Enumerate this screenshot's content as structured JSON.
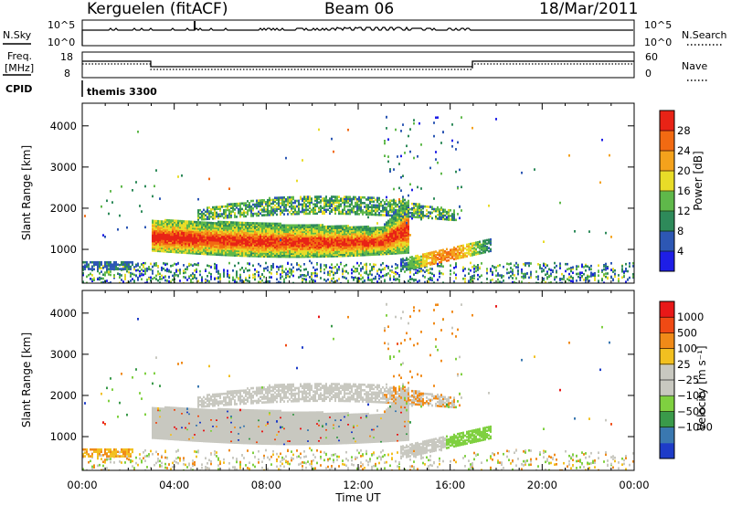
{
  "header": {
    "station": "Kerguelen (fitACF)",
    "beam": "Beam 06",
    "date": "18/Mar/2011"
  },
  "strips": {
    "nsky_label": "N.Sky",
    "nsearch_label": "N.Search",
    "nsky_ticks": [
      "10^5",
      "10^0"
    ],
    "nsky_right_ticks": [
      "10^5",
      "10^0"
    ],
    "freq_label_1": "Freq.",
    "freq_label_2": "[MHz]",
    "freq_ticks": [
      "18",
      "8"
    ],
    "nave_label": "Nave",
    "nave_ticks": [
      "60",
      "0"
    ],
    "cpid_label": "CPID",
    "cpid_value": "themis 3300"
  },
  "chart_data": [
    {
      "type": "heatmap",
      "name": "power",
      "ylabel": "Slant Range [km]",
      "colorbar_label": "Power [dB]",
      "y_ticks": [
        "1000",
        "2000",
        "3000",
        "4000"
      ],
      "ylim": [
        180,
        4550
      ],
      "colorbar_ticks": [
        "4",
        "8",
        "12",
        "16",
        "20",
        "24",
        "28"
      ],
      "colorbar_colors": [
        "#1e1ee6",
        "#2d57b4",
        "#2e8a5a",
        "#5fb84a",
        "#e8dc28",
        "#f4a21c",
        "#f26a12",
        "#e82316"
      ],
      "features": [
        {
          "name": "main band",
          "x_hours": [
            3.0,
            14.0
          ],
          "range_km": [
            850,
            1750
          ],
          "power_db": 26
        },
        {
          "name": "upper layer",
          "x_hours": [
            5.5,
            15.5
          ],
          "range_km": [
            1700,
            2350
          ],
          "power_db": 10
        },
        {
          "name": "late echo",
          "x_hours": [
            14.0,
            17.8
          ],
          "range_km": [
            500,
            1300
          ],
          "power_db": 14
        }
      ]
    },
    {
      "type": "heatmap",
      "name": "velocity",
      "ylabel": "Slant Range [km]",
      "colorbar_label": "Velocity [m s⁻¹]",
      "y_ticks": [
        "1000",
        "2000",
        "3000",
        "4000"
      ],
      "ylim": [
        180,
        4550
      ],
      "colorbar_ticks": [
        "1000",
        "500",
        "100",
        "25",
        "−25",
        "−100",
        "−500",
        "−1000"
      ],
      "colorbar_colors": [
        "#1e3cc8",
        "#3a78b0",
        "#3a9a4a",
        "#7fd040",
        "#c8c8c0",
        "#c8c8c0",
        "#f2c020",
        "#f08a18",
        "#f04a14",
        "#e81818"
      ],
      "x_ticks": [
        "00:00",
        "04:00",
        "08:00",
        "12:00",
        "16:00",
        "20:00",
        "00:00"
      ],
      "xlabel": "Time UT"
    }
  ]
}
